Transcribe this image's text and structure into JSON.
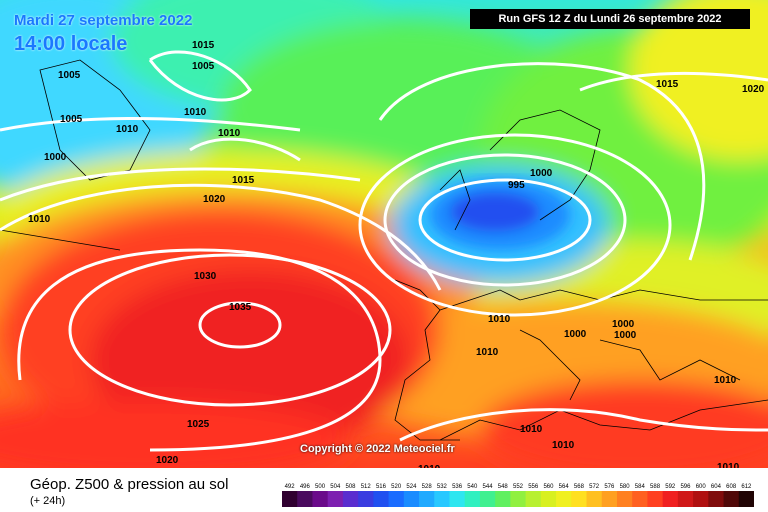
{
  "header": {
    "date": "Mardi 27 septembre 2022",
    "time": "14:00 locale",
    "run": "Run GFS 12 Z du Lundi 26 septembre 2022"
  },
  "map": {
    "copyright": "Copyright © 2022 Meteociel.fr",
    "isobars": [
      {
        "value": "1005",
        "label_count": 3
      },
      {
        "value": "1015",
        "label_count": 3
      },
      {
        "value": "1010",
        "label_count": 10
      },
      {
        "value": "1000",
        "label_count": 5
      },
      {
        "value": "1020",
        "label_count": 3
      },
      {
        "value": "1030",
        "label_count": 1
      },
      {
        "value": "1035",
        "label_count": 1
      },
      {
        "value": "1025",
        "label_count": 1
      },
      {
        "value": "995",
        "label_count": 1
      }
    ]
  },
  "footer": {
    "title": "Géop. Z500 & pression au sol",
    "subtitle": "(+ 24h)"
  },
  "legend": {
    "labels": [
      "492",
      "496",
      "500",
      "504",
      "508",
      "512",
      "516",
      "520",
      "524",
      "528",
      "532",
      "536",
      "540",
      "544",
      "548",
      "552",
      "556",
      "560",
      "564",
      "568",
      "572",
      "576",
      "580",
      "584",
      "588",
      "592",
      "596",
      "600",
      "604",
      "608",
      "612"
    ],
    "colors": [
      "#300030",
      "#4a0a5e",
      "#6a0a8a",
      "#7d1fb0",
      "#5a2dcf",
      "#3a3ce0",
      "#2050f0",
      "#1a6cff",
      "#1a8cff",
      "#20aaff",
      "#28c8ff",
      "#2ee6f0",
      "#30f0c0",
      "#40f090",
      "#60f060",
      "#90f040",
      "#b8f030",
      "#d8f020",
      "#f0f020",
      "#ffe020",
      "#ffc020",
      "#ffa020",
      "#ff8020",
      "#ff6020",
      "#ff4020",
      "#f02020",
      "#d01818",
      "#b01010",
      "#800c0c",
      "#500808",
      "#200404"
    ]
  }
}
